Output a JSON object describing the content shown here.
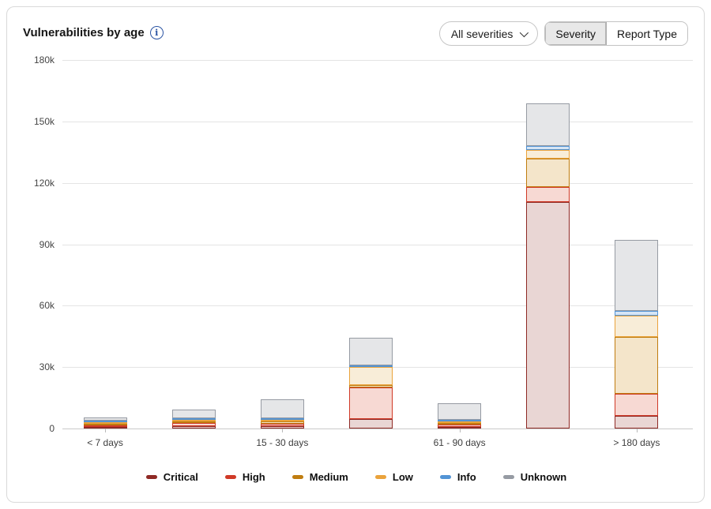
{
  "header": {
    "title": "Vulnerabilities by age",
    "severity_filter_label": "All severities",
    "toggle_options": [
      {
        "label": "Severity",
        "selected": true
      },
      {
        "label": "Report Type",
        "selected": false
      }
    ]
  },
  "chart_data": {
    "type": "bar",
    "stacked": true,
    "title": "Vulnerabilities by age",
    "categories": [
      "< 7 days",
      "",
      "15 - 30 days",
      "",
      "61 - 90 days",
      "",
      "> 180 days"
    ],
    "series": [
      {
        "name": "Critical",
        "color": "#8f2a25",
        "fill": "#e9d6d4",
        "values": [
          200,
          1200,
          1300,
          4600,
          900,
          110500,
          6300
        ]
      },
      {
        "name": "High",
        "color": "#d03a27",
        "fill": "#f7d9d3",
        "values": [
          300,
          1600,
          1000,
          15500,
          1000,
          7400,
          10800
        ]
      },
      {
        "name": "Medium",
        "color": "#c07d10",
        "fill": "#f4e5ca",
        "values": [
          300,
          800,
          1000,
          1200,
          600,
          14000,
          27600
        ]
      },
      {
        "name": "Low",
        "color": "#eaa33c",
        "fill": "#f8edd8",
        "values": [
          700,
          800,
          900,
          8900,
          500,
          4300,
          10400
        ]
      },
      {
        "name": "Info",
        "color": "#5394d5",
        "fill": "#d6e5f5",
        "values": [
          500,
          300,
          400,
          400,
          300,
          2000,
          2300
        ]
      },
      {
        "name": "Unknown",
        "color": "#969ba3",
        "fill": "#e5e6e8",
        "values": [
          1400,
          4300,
          9400,
          13500,
          8000,
          21000,
          34500
        ]
      }
    ],
    "ylim": [
      0,
      180000
    ],
    "ytick_labels": [
      "180k",
      "150k",
      "120k",
      "90k",
      "60k",
      "30k",
      "0"
    ],
    "grid": true,
    "legend_position": "bottom"
  }
}
